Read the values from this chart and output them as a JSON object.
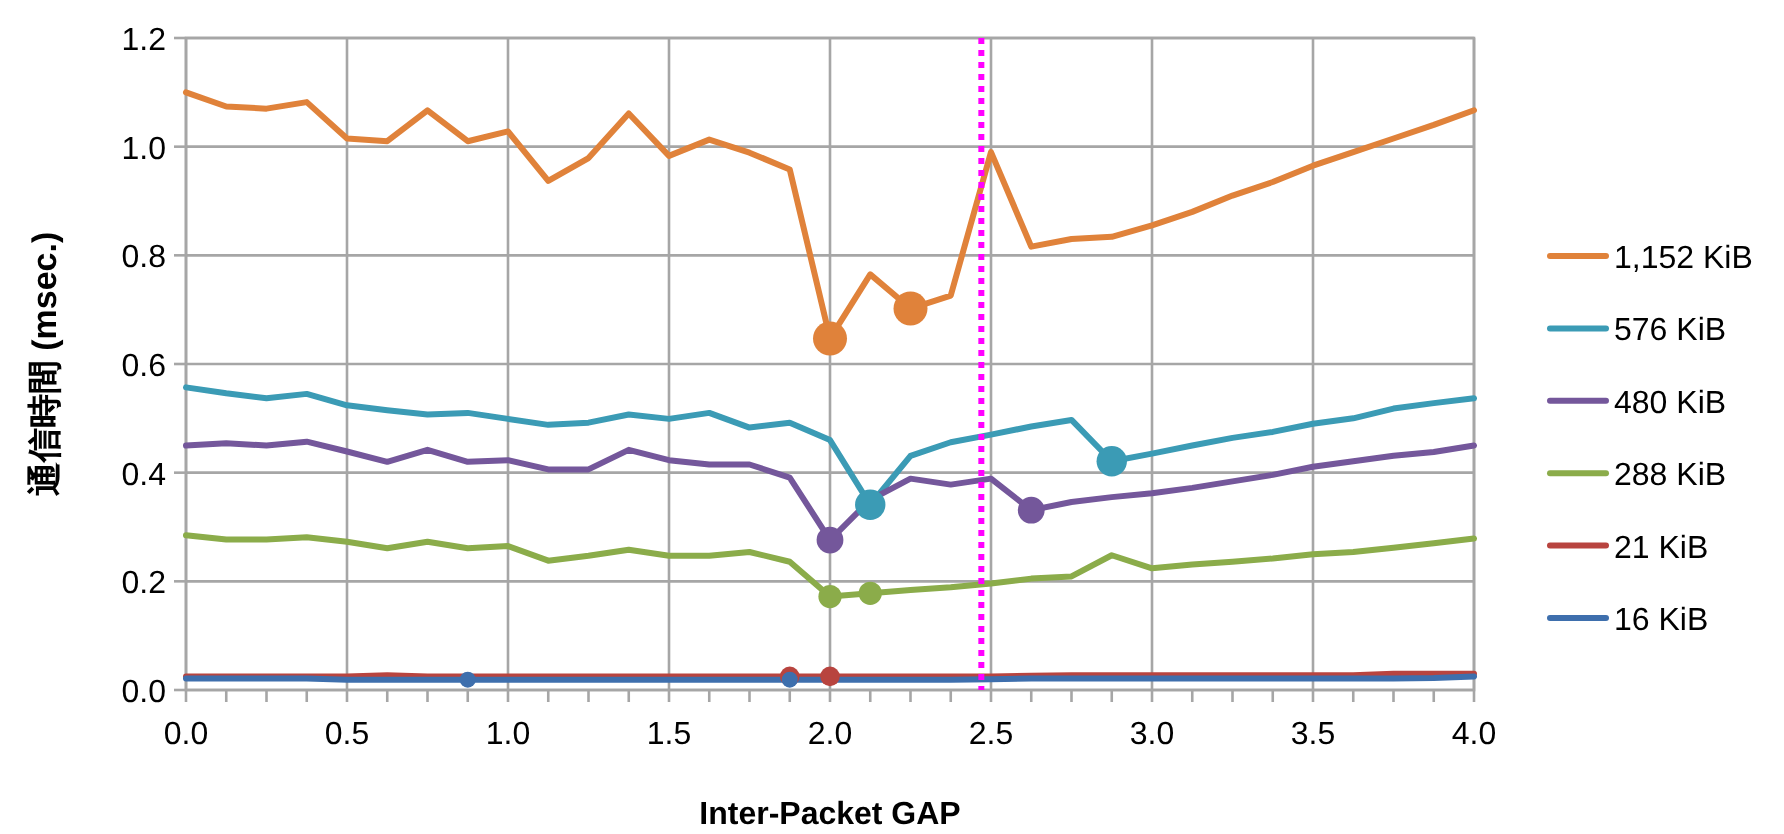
{
  "chart_data": {
    "type": "line",
    "xlabel": "Inter-Packet GAP",
    "ylabel": "通信時間 (msec.)",
    "x": [
      0,
      0.125,
      0.25,
      0.375,
      0.5,
      0.625,
      0.75,
      0.875,
      1,
      1.125,
      1.25,
      1.375,
      1.5,
      1.625,
      1.75,
      1.875,
      2,
      2.125,
      2.25,
      2.375,
      2.5,
      2.625,
      2.75,
      2.875,
      3,
      3.125,
      3.25,
      3.375,
      3.5,
      3.625,
      3.75,
      3.875,
      4
    ],
    "xlim": [
      0,
      4
    ],
    "ylim": [
      0,
      1.2
    ],
    "xticks": [
      {
        "value": 0,
        "label": "0.0"
      },
      {
        "value": 0.125,
        "label": null
      },
      {
        "value": 0.25,
        "label": null
      },
      {
        "value": 0.375,
        "label": null
      },
      {
        "value": 0.5,
        "label": "0.5"
      },
      {
        "value": 0.625,
        "label": null
      },
      {
        "value": 0.75,
        "label": null
      },
      {
        "value": 0.875,
        "label": null
      },
      {
        "value": 1,
        "label": "1.0"
      },
      {
        "value": 1.125,
        "label": null
      },
      {
        "value": 1.25,
        "label": null
      },
      {
        "value": 1.375,
        "label": null
      },
      {
        "value": 1.5,
        "label": "1.5"
      },
      {
        "value": 1.625,
        "label": null
      },
      {
        "value": 1.75,
        "label": null
      },
      {
        "value": 1.875,
        "label": null
      },
      {
        "value": 2,
        "label": "2.0"
      },
      {
        "value": 2.125,
        "label": null
      },
      {
        "value": 2.25,
        "label": null
      },
      {
        "value": 2.375,
        "label": null
      },
      {
        "value": 2.5,
        "label": "2.5"
      },
      {
        "value": 2.625,
        "label": null
      },
      {
        "value": 2.75,
        "label": null
      },
      {
        "value": 2.875,
        "label": null
      },
      {
        "value": 3,
        "label": "3.0"
      },
      {
        "value": 3.125,
        "label": null
      },
      {
        "value": 3.25,
        "label": null
      },
      {
        "value": 3.375,
        "label": null
      },
      {
        "value": 3.5,
        "label": "3.5"
      },
      {
        "value": 3.625,
        "label": null
      },
      {
        "value": 3.75,
        "label": null
      },
      {
        "value": 3.875,
        "label": null
      },
      {
        "value": 4,
        "label": "4.0"
      }
    ],
    "yticks": [
      {
        "value": 0,
        "label": "0.0"
      },
      {
        "value": 0.2,
        "label": "0.2"
      },
      {
        "value": 0.4,
        "label": "0.4"
      },
      {
        "value": 0.6,
        "label": "0.6"
      },
      {
        "value": 0.8,
        "label": "0.8"
      },
      {
        "value": 1,
        "label": "1.0"
      },
      {
        "value": 1.2,
        "label": "1.2"
      }
    ],
    "grid": true,
    "legend": "right",
    "line_style": "solid",
    "series": [
      {
        "name": "1,152 KiB",
        "color": "#e0823a",
        "values": [
          1.1,
          1.074,
          1.07,
          1.082,
          1.015,
          1.01,
          1.067,
          1.01,
          1.028,
          0.937,
          0.979,
          1.061,
          0.983,
          1.013,
          0.989,
          0.958,
          0.647,
          0.765,
          0.702,
          0.726,
          0.99,
          0.816,
          0.83,
          0.834,
          0.855,
          0.88,
          0.91,
          0.935,
          0.965,
          0.99,
          1.015,
          1.04,
          1.067
        ]
      },
      {
        "name": "576 KiB",
        "color": "#3b9bb5",
        "values": [
          0.557,
          0.546,
          0.537,
          0.545,
          0.524,
          0.515,
          0.507,
          0.51,
          0.499,
          0.488,
          0.492,
          0.507,
          0.499,
          0.51,
          0.483,
          0.492,
          0.46,
          0.341,
          0.431,
          0.456,
          0.47,
          0.485,
          0.497,
          0.421,
          0.435,
          0.45,
          0.464,
          0.475,
          0.49,
          0.5,
          0.518,
          0.528,
          0.537
        ]
      },
      {
        "name": "480 KiB",
        "color": "#74579b",
        "values": [
          0.45,
          0.454,
          0.45,
          0.457,
          0.439,
          0.42,
          0.442,
          0.42,
          0.423,
          0.406,
          0.406,
          0.442,
          0.423,
          0.415,
          0.415,
          0.391,
          0.276,
          0.35,
          0.389,
          0.378,
          0.389,
          0.331,
          0.346,
          0.355,
          0.362,
          0.372,
          0.384,
          0.396,
          0.411,
          0.421,
          0.431,
          0.438,
          0.45
        ]
      },
      {
        "name": "288 KiB",
        "color": "#8bac4a",
        "values": [
          0.285,
          0.277,
          0.277,
          0.281,
          0.273,
          0.261,
          0.273,
          0.261,
          0.265,
          0.238,
          0.247,
          0.258,
          0.247,
          0.247,
          0.254,
          0.236,
          0.172,
          0.178,
          0.184,
          0.189,
          0.196,
          0.205,
          0.209,
          0.248,
          0.224,
          0.231,
          0.236,
          0.242,
          0.25,
          0.254,
          0.262,
          0.27,
          0.279
        ]
      },
      {
        "name": "21 KiB",
        "color": "#b8443f",
        "values": [
          0.025,
          0.025,
          0.025,
          0.025,
          0.025,
          0.027,
          0.025,
          0.025,
          0.025,
          0.025,
          0.025,
          0.025,
          0.025,
          0.025,
          0.025,
          0.025,
          0.025,
          0.025,
          0.025,
          0.025,
          0.025,
          0.026,
          0.027,
          0.027,
          0.027,
          0.027,
          0.027,
          0.027,
          0.027,
          0.027,
          0.03,
          0.03,
          0.03
        ]
      },
      {
        "name": "16 KiB",
        "color": "#3e6fad",
        "values": [
          0.021,
          0.021,
          0.021,
          0.021,
          0.019,
          0.019,
          0.019,
          0.019,
          0.019,
          0.019,
          0.019,
          0.019,
          0.019,
          0.019,
          0.019,
          0.019,
          0.019,
          0.019,
          0.019,
          0.019,
          0.02,
          0.021,
          0.021,
          0.021,
          0.021,
          0.021,
          0.021,
          0.021,
          0.021,
          0.021,
          0.021,
          0.022,
          0.025
        ]
      },
      {
        "type": "scatter",
        "color": "#e0823a",
        "x": [
          2,
          2.25
        ],
        "values": [
          0.647,
          0.702
        ]
      },
      {
        "type": "scatter",
        "color": "#3b9bb5",
        "x": [
          2.125,
          2.875
        ],
        "values": [
          0.341,
          0.421
        ]
      },
      {
        "type": "scatter",
        "color": "#74579b",
        "x": [
          2,
          2.625
        ],
        "values": [
          0.276,
          0.331
        ]
      },
      {
        "type": "scatter",
        "color": "#8bac4a",
        "x": [
          2,
          2.125
        ],
        "values": [
          0.172,
          0.178
        ]
      },
      {
        "type": "scatter",
        "color": "#b8443f",
        "x": [
          1.875,
          2
        ],
        "values": [
          0.025,
          0.025
        ]
      },
      {
        "type": "scatter",
        "color": "#3e6fad",
        "x": [
          0.875,
          1.875
        ],
        "values": [
          0.019,
          0.019
        ]
      }
    ],
    "ref_lines": [
      {
        "axis": "x",
        "value": 2.47,
        "color": "#ff00ff",
        "line_style": "dotted"
      }
    ]
  }
}
